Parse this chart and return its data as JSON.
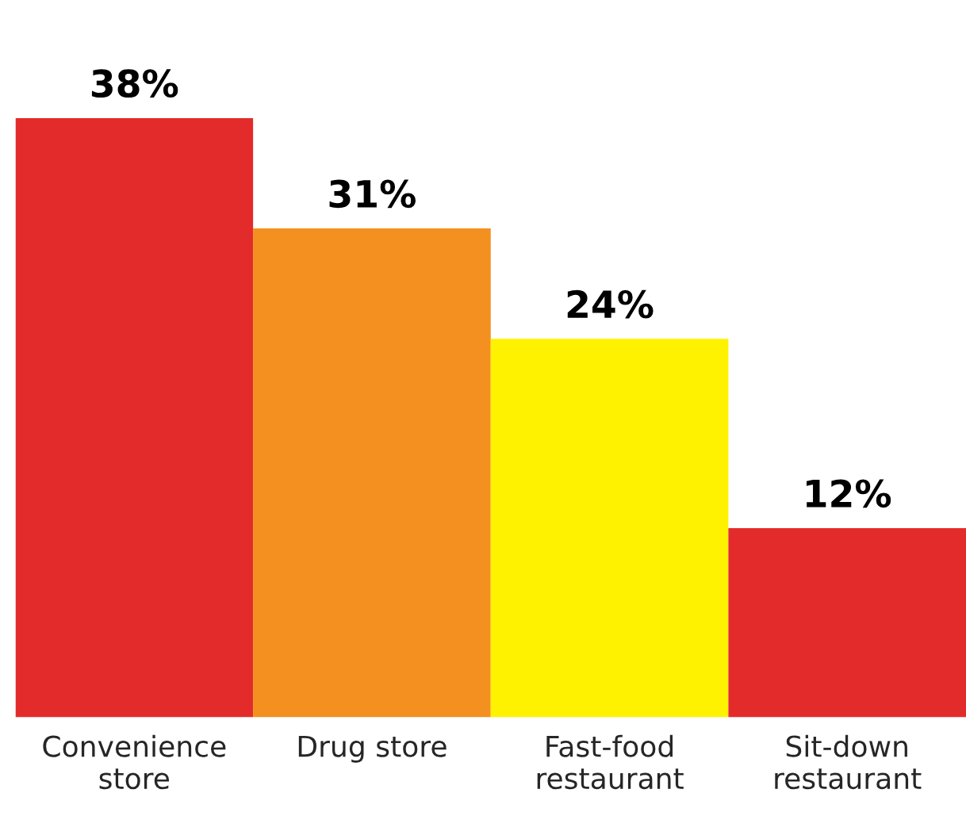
{
  "chart_data": {
    "type": "bar",
    "categories": [
      "Convenience\nstore",
      "Drug store",
      "Fast-food\nrestaurant",
      "Sit-down\nrestaurant"
    ],
    "values": [
      38,
      31,
      24,
      12
    ],
    "value_labels": [
      "38%",
      "31%",
      "24%",
      "12%"
    ],
    "colors": [
      "#e42b2b",
      "#f4901f",
      "#fff200",
      "#e42b2b"
    ],
    "grid": false,
    "legend": false
  }
}
